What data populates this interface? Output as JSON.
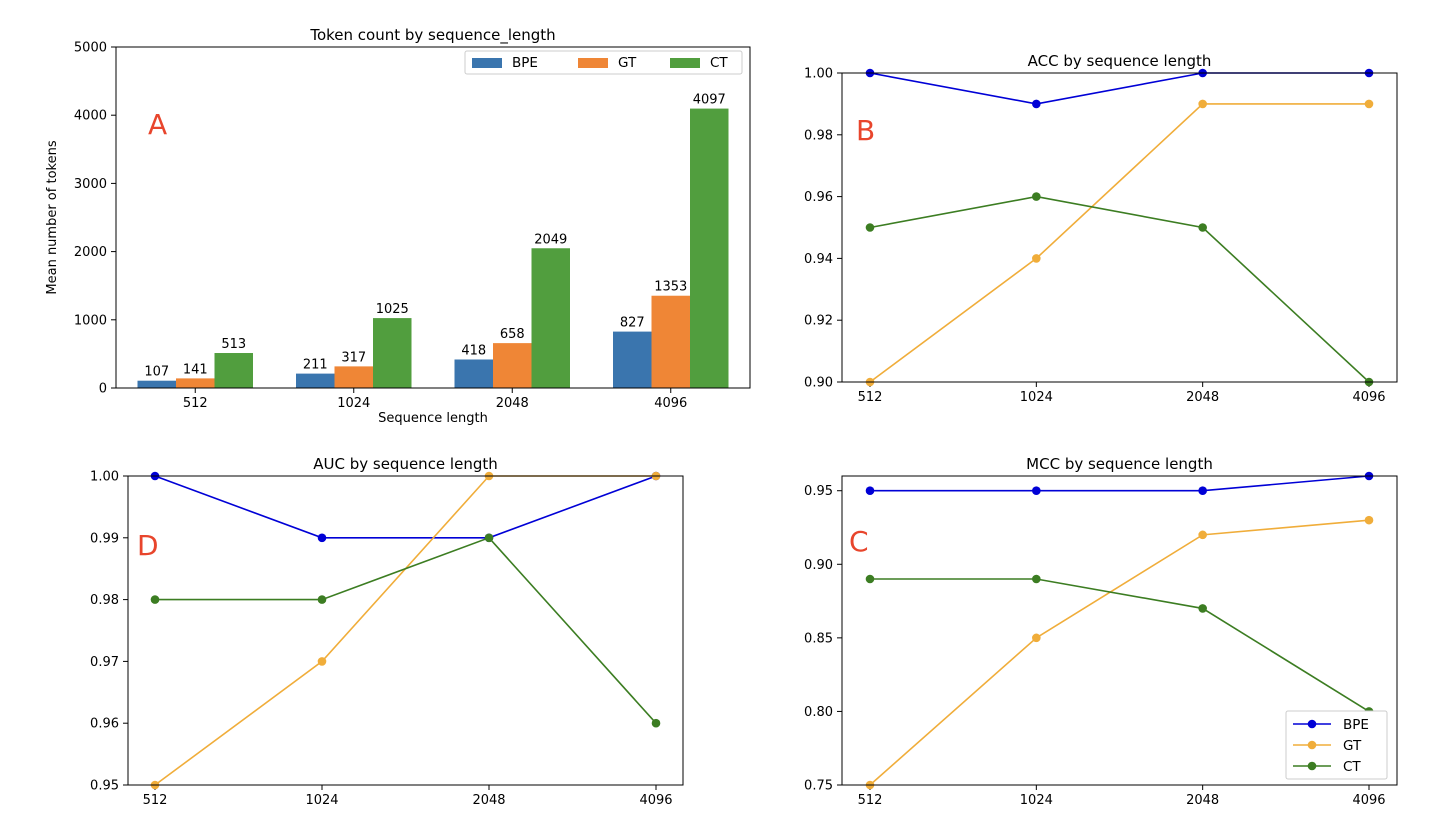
{
  "chart_data": [
    {
      "type": "bar",
      "panel_letter": "A",
      "title": "Token count by sequence_length",
      "xlabel": "Sequence length",
      "ylabel": "Mean number of tokens",
      "categories": [
        "512",
        "1024",
        "2048",
        "4096"
      ],
      "ylim": [
        0,
        5000
      ],
      "yticks": [
        0,
        1000,
        2000,
        3000,
        4000,
        5000
      ],
      "legend": "top-right",
      "grid": false,
      "series": [
        {
          "name": "BPE",
          "color": "#3a75ae",
          "values": [
            107,
            211,
            418,
            827
          ]
        },
        {
          "name": "GT",
          "color": "#ef8636",
          "values": [
            141,
            317,
            658,
            1353
          ]
        },
        {
          "name": "CT",
          "color": "#519e3e",
          "values": [
            513,
            1025,
            2049,
            4097
          ]
        }
      ]
    },
    {
      "type": "line",
      "panel_letter": "B",
      "title": "ACC by sequence length",
      "categories": [
        "512",
        "1024",
        "2048",
        "4096"
      ],
      "ylim": [
        0.9,
        1.0
      ],
      "yticks": [
        "0.90",
        "0.92",
        "0.94",
        "0.96",
        "0.98",
        "1.00"
      ],
      "legend": "none",
      "grid": false,
      "series": [
        {
          "name": "BPE",
          "color": "#0000d6",
          "values": [
            1.0,
            0.99,
            1.0,
            1.0
          ]
        },
        {
          "name": "GT",
          "color": "#f0ad3a",
          "values": [
            0.9,
            0.94,
            0.99,
            0.99
          ]
        },
        {
          "name": "CT",
          "color": "#3c7d22",
          "values": [
            0.95,
            0.96,
            0.95,
            0.9
          ]
        }
      ]
    },
    {
      "type": "line",
      "panel_letter": "D",
      "title": "AUC by sequence length",
      "categories": [
        "512",
        "1024",
        "2048",
        "4096"
      ],
      "ylim": [
        0.95,
        1.0
      ],
      "yticks": [
        "0.95",
        "0.96",
        "0.97",
        "0.98",
        "0.99",
        "1.00"
      ],
      "legend": "none",
      "grid": false,
      "series": [
        {
          "name": "BPE",
          "color": "#0000d6",
          "values": [
            1.0,
            0.99,
            0.99,
            1.0
          ]
        },
        {
          "name": "GT",
          "color": "#f0ad3a",
          "values": [
            0.95,
            0.97,
            1.0,
            1.0
          ]
        },
        {
          "name": "CT",
          "color": "#3c7d22",
          "values": [
            0.98,
            0.98,
            0.99,
            0.96
          ]
        }
      ]
    },
    {
      "type": "line",
      "panel_letter": "C",
      "title": "MCC by sequence length",
      "categories": [
        "512",
        "1024",
        "2048",
        "4096"
      ],
      "ylim": [
        0.75,
        0.96
      ],
      "yticks": [
        "0.75",
        "0.80",
        "0.85",
        "0.90",
        "0.95"
      ],
      "legend": "bottom-right",
      "grid": false,
      "series": [
        {
          "name": "BPE",
          "color": "#0000d6",
          "values": [
            0.95,
            0.95,
            0.95,
            0.96
          ]
        },
        {
          "name": "GT",
          "color": "#f0ad3a",
          "values": [
            0.75,
            0.85,
            0.92,
            0.93
          ]
        },
        {
          "name": "CT",
          "color": "#3c7d22",
          "values": [
            0.89,
            0.89,
            0.87,
            0.8
          ]
        }
      ]
    }
  ]
}
